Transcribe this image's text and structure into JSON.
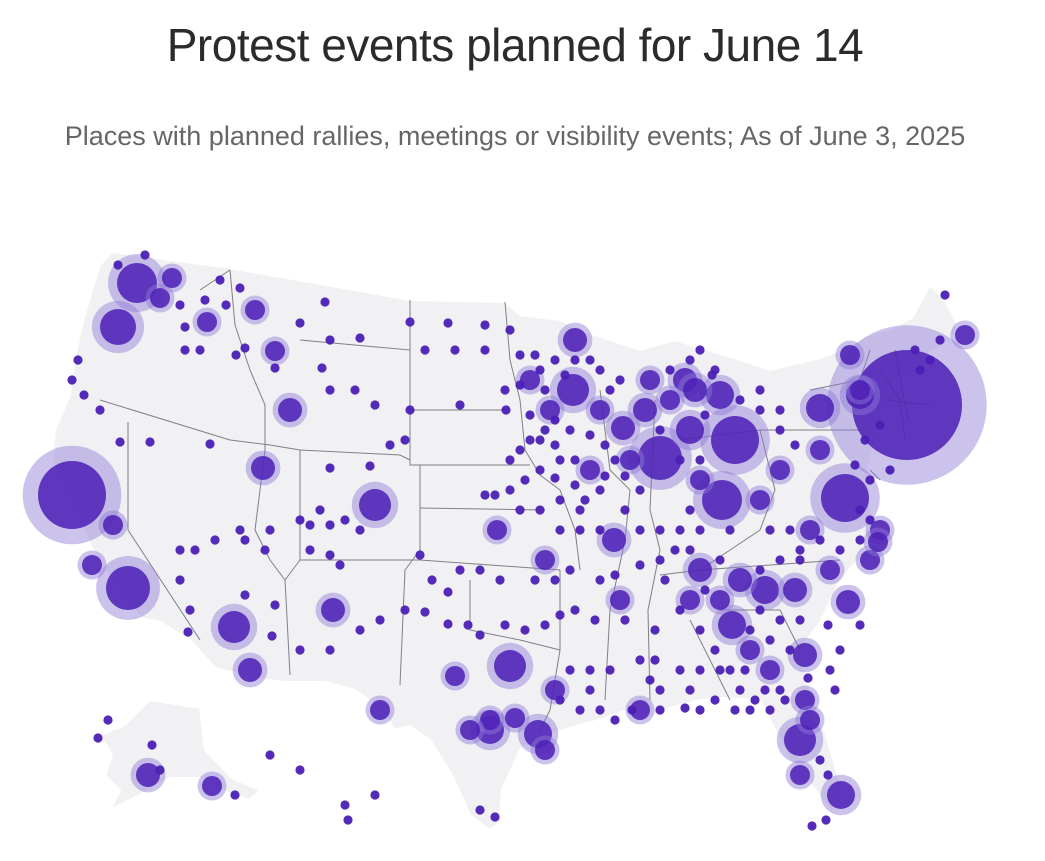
{
  "title": "Protest events planned for June 14",
  "subtitle": "Places with planned rallies, meetings or visibility events; As of June 3, 2025",
  "map": {
    "region": "United States",
    "marker_color": "#4b1fb5",
    "halo_color": "#8f7ad6",
    "land_color": "#f1f1f3",
    "border_color": "#7f7f86",
    "event_markers": [
      {
        "size": "large",
        "halo": true
      },
      {
        "size": "medium",
        "halo": true
      },
      {
        "size": "small",
        "halo": true
      },
      {
        "size": "dot",
        "halo": false
      }
    ]
  }
}
